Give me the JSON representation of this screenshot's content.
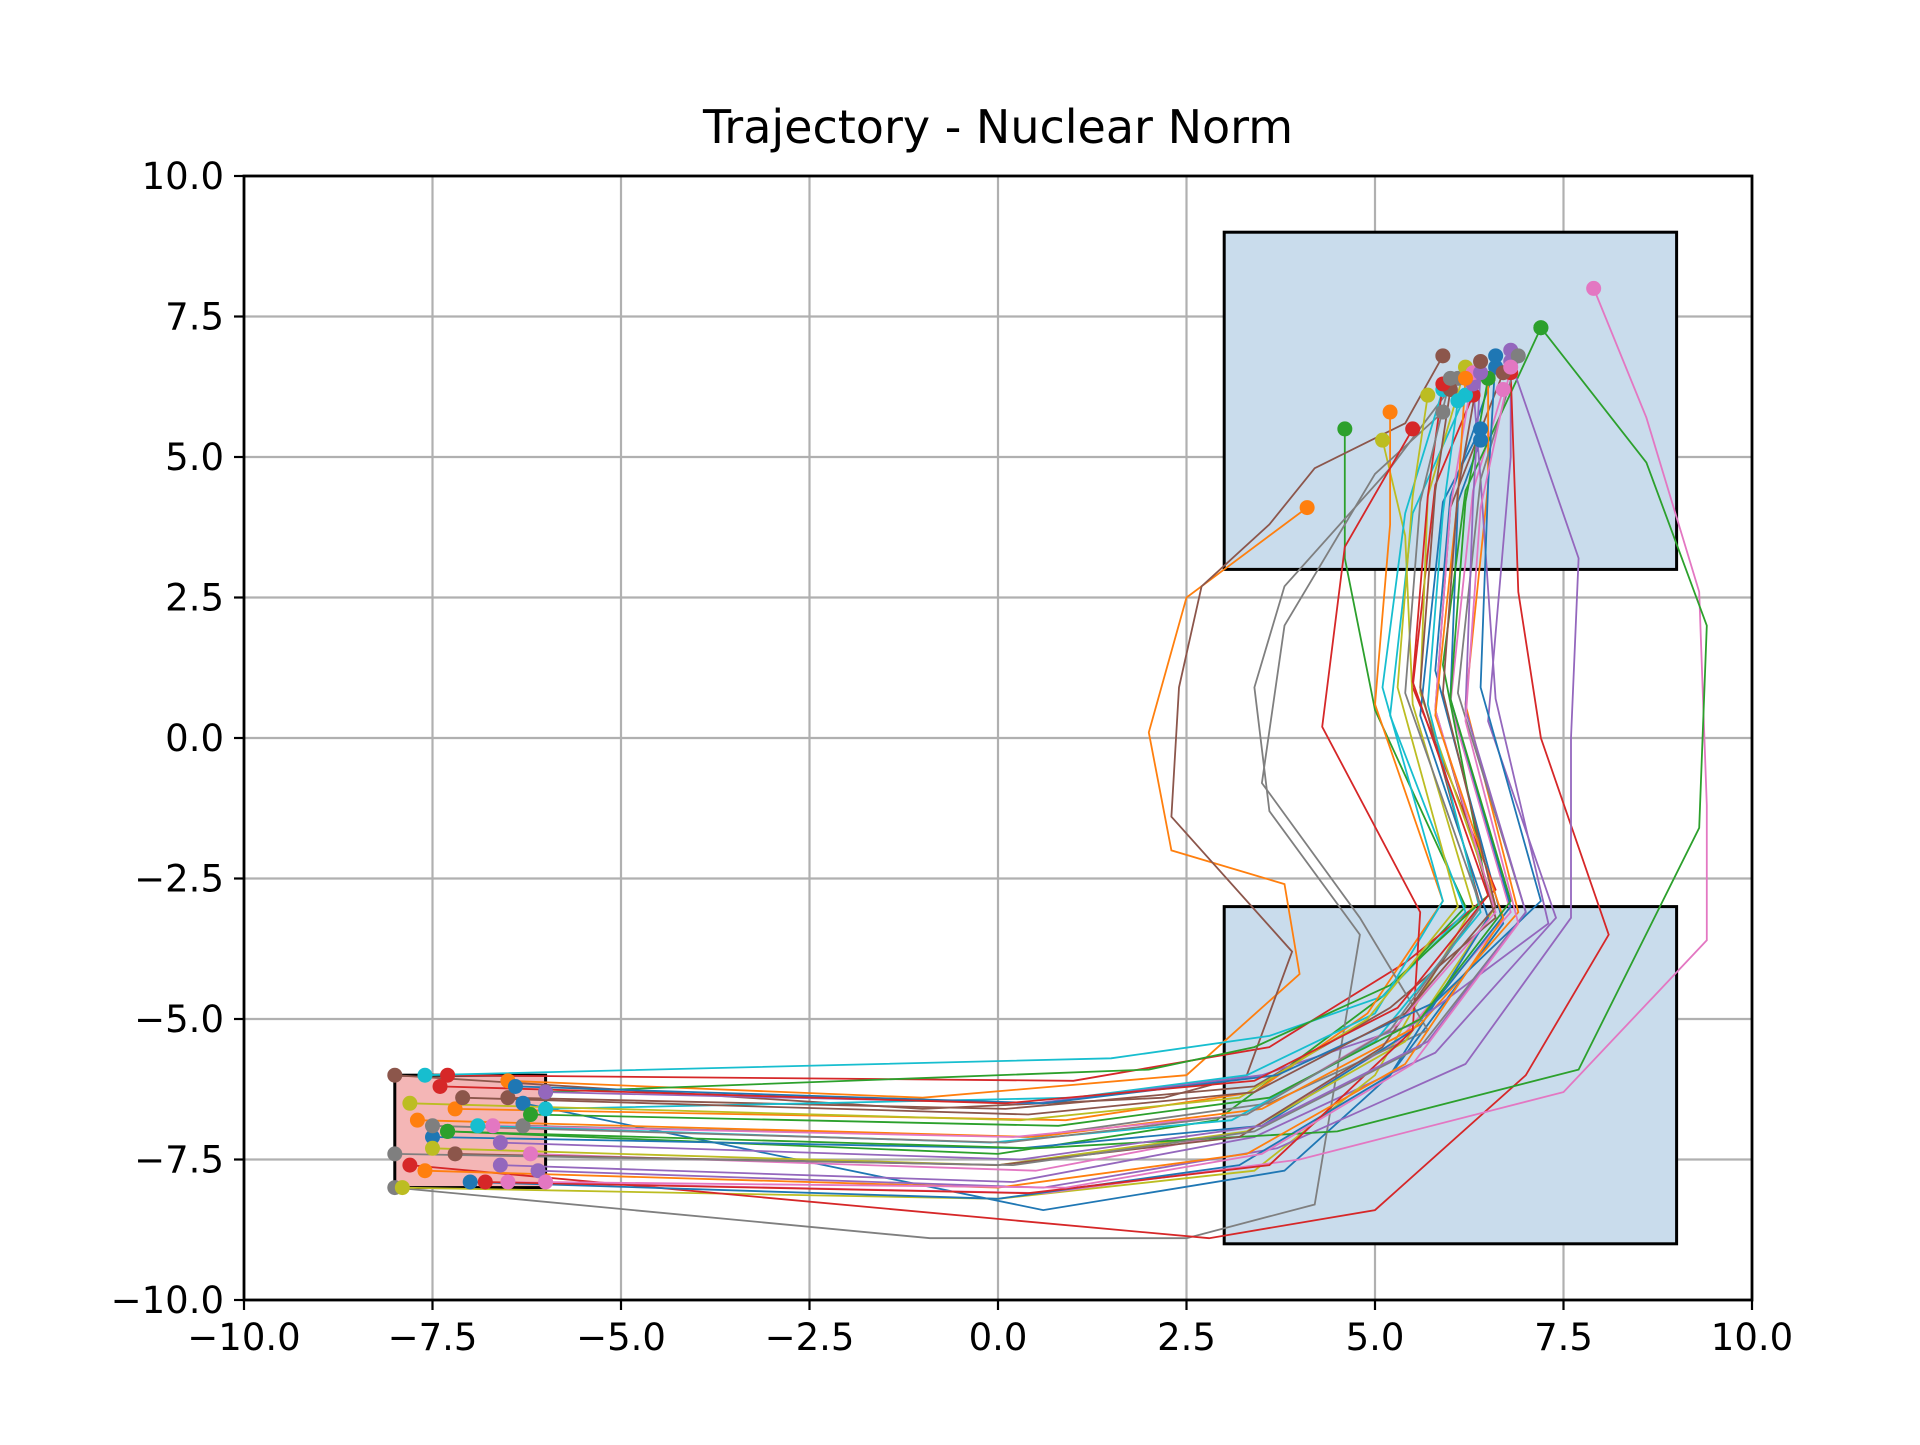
{
  "chart_data": {
    "type": "line",
    "title": "Trajectory - Nuclear Norm",
    "xlabel": "",
    "ylabel": "",
    "xlim": [
      -10.0,
      10.0
    ],
    "ylim": [
      -10.0,
      10.0
    ],
    "xticks": [
      "−10.0",
      "−7.5",
      "−5.0",
      "−2.5",
      "0.0",
      "2.5",
      "5.0",
      "7.5",
      "10.0"
    ],
    "yticks": [
      "−10.0",
      "−7.5",
      "−5.0",
      "−2.5",
      "0.0",
      "2.5",
      "5.0",
      "7.5",
      "10.0"
    ],
    "xtick_values": [
      -10,
      -7.5,
      -5,
      -2.5,
      0,
      2.5,
      5,
      7.5,
      10
    ],
    "ytick_values": [
      -10,
      -7.5,
      -5,
      -2.5,
      0,
      2.5,
      5,
      7.5,
      10
    ],
    "grid": true,
    "regions": [
      {
        "kind": "start-region",
        "x": [
          -8,
          -6
        ],
        "y": [
          -8,
          -6
        ],
        "fill": "#f4b6b6",
        "edge": "#000000"
      },
      {
        "kind": "obstacle-or-goal",
        "x": [
          3,
          9
        ],
        "y": [
          -9,
          -3
        ],
        "fill": "#c9dcec",
        "edge": "#000000"
      },
      {
        "kind": "obstacle-or-goal",
        "x": [
          3,
          9
        ],
        "y": [
          3,
          9
        ],
        "fill": "#c9dcec",
        "edge": "#000000"
      }
    ],
    "series_colors": [
      "#1f77b4",
      "#ff7f0e",
      "#2ca02c",
      "#d62728",
      "#9467bd",
      "#8c564b",
      "#e377c2",
      "#7f7f7f",
      "#bcbd22",
      "#17becf"
    ],
    "series": [
      {
        "x": [
          -6.3,
          0.6,
          3.8,
          5.2,
          6.7,
          5.8,
          6.0,
          6.6
        ],
        "y": [
          -6.5,
          -8.4,
          -7.7,
          -6.0,
          -3.3,
          1.2,
          4.3,
          6.6
        ]
      },
      {
        "x": [
          -6.5,
          -1.0,
          2.5,
          4.0,
          3.8,
          2.3,
          2.0,
          2.5,
          4.1
        ],
        "y": [
          -6.1,
          -6.4,
          -6.0,
          -4.2,
          -2.6,
          -2.0,
          0.1,
          2.5,
          4.1
        ]
      },
      {
        "x": [
          -7.3,
          0.0,
          2.9,
          5.1,
          6.2,
          5.0,
          4.6,
          4.6
        ],
        "y": [
          -7.0,
          -7.4,
          -6.8,
          -4.6,
          -3.0,
          0.5,
          3.2,
          5.5
        ]
      },
      {
        "x": [
          -7.3,
          1.0,
          3.6,
          5.4,
          6.6,
          5.5,
          5.8,
          6.3
        ],
        "y": [
          -6.0,
          -6.1,
          -5.5,
          -4.0,
          -2.7,
          0.9,
          4.5,
          6.1
        ]
      },
      {
        "x": [
          -6.6,
          0.2,
          3.4,
          5.8,
          7.4,
          6.5,
          6.8,
          6.8
        ],
        "y": [
          -7.6,
          -7.9,
          -7.1,
          -5.6,
          -3.2,
          0.3,
          5.0,
          6.9
        ]
      },
      {
        "x": [
          -8.0,
          -1.0,
          2.2,
          3.3,
          3.9,
          2.3,
          2.4,
          2.7,
          3.6,
          4.2,
          5.4,
          5.9
        ],
        "y": [
          -6.0,
          -6.6,
          -6.4,
          -6.0,
          -3.8,
          -1.4,
          0.9,
          2.7,
          3.8,
          4.8,
          5.6,
          6.8
        ]
      },
      {
        "x": [
          -6.2,
          0.5,
          3.3,
          5.3,
          6.8,
          6.0,
          6.3,
          6.7
        ],
        "y": [
          -7.4,
          -7.7,
          -7.0,
          -5.4,
          -3.1,
          0.6,
          4.4,
          6.2
        ]
      },
      {
        "x": [
          -8.0,
          -0.9,
          2.5,
          4.2,
          4.8,
          3.6,
          3.4,
          3.8,
          5.2,
          6.1
        ],
        "y": [
          -8.0,
          -8.9,
          -8.9,
          -8.3,
          -3.5,
          -1.3,
          0.9,
          2.7,
          4.8,
          6.4
        ]
      },
      {
        "x": [
          -7.9,
          0.0,
          3.4,
          5.0,
          6.3,
          5.5,
          5.4,
          5.1
        ],
        "y": [
          -8.0,
          -8.2,
          -7.7,
          -6.0,
          -3.0,
          0.6,
          3.6,
          5.3
        ]
      },
      {
        "x": [
          -7.6,
          1.5,
          3.6,
          5.1,
          6.2,
          5.2,
          5.5,
          6.2
        ],
        "y": [
          -6.0,
          -5.7,
          -5.3,
          -4.6,
          -3.1,
          0.4,
          4.0,
          6.1
        ]
      },
      {
        "x": [
          -7.5,
          0.3,
          3.5,
          5.5,
          6.8,
          6.0,
          6.1,
          6.4
        ],
        "y": [
          -7.1,
          -7.3,
          -6.9,
          -5.2,
          -3.0,
          0.7,
          4.2,
          5.3
        ]
      },
      {
        "x": [
          -7.2,
          0.9,
          3.4,
          4.9,
          5.9,
          5.0,
          5.2,
          5.2
        ],
        "y": [
          -6.6,
          -6.8,
          -6.3,
          -4.9,
          -2.9,
          0.6,
          3.8,
          5.8
        ]
      },
      {
        "x": [
          -6.0,
          2.0,
          3.4,
          5.2,
          6.5,
          5.9,
          6.2,
          7.2
        ],
        "y": [
          -6.3,
          -5.9,
          -5.5,
          -4.4,
          -2.8,
          1.3,
          4.4,
          7.3
        ]
      },
      {
        "x": [
          -7.8,
          2.8,
          5.0,
          7.0,
          8.1,
          7.2,
          6.9,
          6.8
        ],
        "y": [
          -7.6,
          -8.9,
          -8.4,
          -6.0,
          -3.5,
          0.0,
          2.6,
          6.5
        ]
      },
      {
        "x": [
          -6.1,
          0.6,
          3.7,
          6.2,
          7.6,
          7.6,
          7.7,
          6.8
        ],
        "y": [
          -7.7,
          -8.0,
          -7.3,
          -5.8,
          -3.2,
          0.0,
          3.2,
          6.7
        ]
      },
      {
        "x": [
          -6.5,
          0.1,
          3.4,
          5.2,
          6.6,
          5.8,
          6.0,
          6.7
        ],
        "y": [
          -6.4,
          -6.6,
          -6.2,
          -4.8,
          -3.2,
          0.5,
          4.1,
          6.5
        ]
      },
      {
        "x": [
          -6.5,
          0.6,
          4.0,
          7.5,
          9.4,
          9.4,
          9.3,
          8.6,
          7.9
        ],
        "y": [
          -7.9,
          -8.1,
          -7.5,
          -6.3,
          -3.6,
          -1.2,
          2.6,
          5.7,
          8.0
        ]
      },
      {
        "x": [
          -6.3,
          0.4,
          3.6,
          5.7,
          4.8,
          3.5,
          3.8,
          5.0,
          5.9
        ],
        "y": [
          -6.9,
          -7.1,
          -6.5,
          -5.2,
          -3.2,
          -0.8,
          2.0,
          4.7,
          5.8
        ]
      },
      {
        "x": [
          -7.5,
          0.0,
          3.3,
          5.4,
          6.6,
          5.6,
          5.7,
          6.2
        ],
        "y": [
          -7.3,
          -7.6,
          -7.0,
          -5.4,
          -3.0,
          0.8,
          4.3,
          6.6
        ]
      },
      {
        "x": [
          -6.0,
          1.0,
          3.3,
          5.0,
          5.9,
          5.1,
          5.4,
          5.9
        ],
        "y": [
          -6.6,
          -6.4,
          -6.0,
          -4.9,
          -2.9,
          0.9,
          4.0,
          6.2
        ]
      },
      {
        "x": [
          -7.0,
          0.0,
          3.2,
          5.2,
          6.5,
          5.6,
          5.9,
          6.4
        ],
        "y": [
          -7.9,
          -8.2,
          -7.6,
          -6.0,
          -3.2,
          0.4,
          4.2,
          5.5
        ]
      },
      {
        "x": [
          -7.7,
          0.5,
          3.5,
          5.6,
          6.9,
          6.2,
          6.5,
          6.5
        ],
        "y": [
          -6.8,
          -7.1,
          -6.6,
          -5.1,
          -3.1,
          0.6,
          4.5,
          6.4
        ]
      },
      {
        "x": [
          -7.3,
          0.5,
          4.5,
          7.7,
          9.3,
          9.4,
          8.6,
          7.2
        ],
        "y": [
          -7.0,
          -7.3,
          -7.0,
          -5.9,
          -1.6,
          2.0,
          4.9,
          7.3
        ]
      },
      {
        "x": [
          -6.8,
          0.4,
          3.6,
          5.5,
          5.6,
          4.3,
          4.6,
          5.5
        ],
        "y": [
          -7.9,
          -8.1,
          -7.6,
          -5.2,
          -3.1,
          0.2,
          3.4,
          5.5
        ]
      },
      {
        "x": [
          -6.0,
          0.5,
          3.5,
          5.5,
          7.3,
          6.6,
          6.4,
          6.3
        ],
        "y": [
          -6.3,
          -6.5,
          -6.0,
          -5.1,
          -3.3,
          0.7,
          4.6,
          6.3
        ]
      },
      {
        "x": [
          -7.2,
          0.0,
          3.2,
          5.1,
          6.4,
          5.6,
          5.8,
          6.0
        ],
        "y": [
          -7.4,
          -7.6,
          -7.1,
          -5.5,
          -3.0,
          0.9,
          4.4,
          6.2
        ]
      },
      {
        "x": [
          -6.7,
          0.2,
          3.3,
          5.3,
          6.6,
          5.8,
          6.0,
          6.3
        ],
        "y": [
          -6.9,
          -7.1,
          -6.7,
          -5.1,
          -3.1,
          0.5,
          4.1,
          6.5
        ]
      },
      {
        "x": [
          -8.0,
          0.2,
          3.4,
          5.6,
          7.0,
          6.1,
          6.4,
          6.9
        ],
        "y": [
          -7.4,
          -7.6,
          -7.0,
          -5.5,
          -3.1,
          0.8,
          4.6,
          6.8
        ]
      },
      {
        "x": [
          -7.8,
          0.3,
          3.2,
          4.9,
          6.1,
          5.3,
          5.5,
          5.7
        ],
        "y": [
          -6.5,
          -6.8,
          -6.4,
          -5.0,
          -3.0,
          0.9,
          4.3,
          6.1
        ]
      },
      {
        "x": [
          -6.9,
          -0.1,
          3.1,
          5.0,
          6.4,
          5.7,
          5.9,
          6.1
        ],
        "y": [
          -6.9,
          -7.2,
          -6.8,
          -5.4,
          -3.1,
          0.6,
          4.0,
          6.0
        ]
      },
      {
        "x": [
          -6.4,
          0.6,
          3.7,
          5.8,
          7.2,
          6.4,
          6.5,
          6.6
        ],
        "y": [
          -6.2,
          -6.5,
          -6.0,
          -4.7,
          -2.9,
          0.9,
          4.5,
          6.8
        ]
      },
      {
        "x": [
          -7.6,
          0.0,
          3.3,
          5.4,
          6.7,
          5.8,
          6.1,
          6.2
        ],
        "y": [
          -7.7,
          -8.0,
          -7.4,
          -5.8,
          -3.2,
          0.4,
          4.3,
          6.4
        ]
      },
      {
        "x": [
          -6.2,
          0.8,
          3.6,
          5.6,
          6.8,
          6.0,
          6.2,
          6.5
        ],
        "y": [
          -6.7,
          -6.9,
          -6.4,
          -5.0,
          -2.9,
          0.7,
          4.2,
          6.4
        ]
      },
      {
        "x": [
          -7.4,
          0.1,
          3.4,
          5.3,
          6.5,
          5.5,
          5.7,
          5.9
        ],
        "y": [
          -6.2,
          -6.5,
          -6.1,
          -4.8,
          -2.8,
          1.0,
          4.3,
          6.3
        ]
      },
      {
        "x": [
          -6.6,
          0.3,
          3.5,
          5.7,
          7.0,
          6.2,
          6.3,
          6.4
        ],
        "y": [
          -7.2,
          -7.5,
          -6.9,
          -5.4,
          -3.1,
          0.5,
          4.2,
          6.5
        ]
      },
      {
        "x": [
          -7.1,
          0.4,
          3.4,
          5.4,
          6.6,
          5.9,
          6.1,
          6.4
        ],
        "y": [
          -6.4,
          -6.7,
          -6.3,
          -4.9,
          -3.0,
          0.8,
          4.4,
          6.7
        ]
      },
      {
        "x": [
          -6.0,
          0.9,
          3.5,
          5.5,
          6.9,
          6.2,
          6.4,
          6.8
        ],
        "y": [
          -7.9,
          -8.0,
          -7.4,
          -5.8,
          -3.3,
          0.3,
          4.1,
          6.6
        ]
      },
      {
        "x": [
          -7.5,
          0.1,
          3.3,
          5.2,
          6.4,
          5.4,
          5.6,
          6.0
        ],
        "y": [
          -6.9,
          -7.2,
          -6.7,
          -5.2,
          -3.0,
          0.8,
          4.2,
          6.4
        ]
      }
    ]
  }
}
